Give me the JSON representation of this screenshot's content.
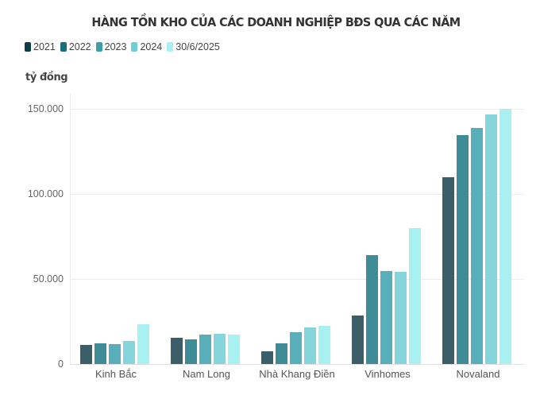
{
  "chart_data": {
    "type": "bar",
    "title": "HÀNG TỒN KHO CỦA CÁC DOANH NGHIỆP BĐS QUA CÁC NĂM",
    "ylabel": "tỷ đồng",
    "xlabel": "",
    "ylim": [
      0,
      150000
    ],
    "yticks": [
      "0",
      "50.000",
      "100.000",
      "150.000"
    ],
    "grid": true,
    "legend_position": "top-left",
    "categories": [
      "Kinh Bắc",
      "Nam Long",
      "Nhà Khang Điền",
      "Vinhomes",
      "Novaland"
    ],
    "series": [
      {
        "name": "2021",
        "color": "#3b5e69",
        "values": [
          11200,
          15400,
          7500,
          28300,
          109600
        ]
      },
      {
        "name": "2022",
        "color": "#3f8b96",
        "values": [
          12100,
          14700,
          12100,
          64000,
          134600
        ]
      },
      {
        "name": "2023",
        "color": "#58aeb9",
        "values": [
          11700,
          17100,
          18500,
          54900,
          138800
        ]
      },
      {
        "name": "2024",
        "color": "#86d5da",
        "values": [
          13500,
          17800,
          21700,
          54200,
          146500
        ]
      },
      {
        "name": "30/6/2025",
        "color": "#a9f0f0",
        "values": [
          23400,
          17500,
          22400,
          79700,
          149800
        ]
      }
    ]
  },
  "legend": {
    "items": [
      {
        "label": "2021",
        "color": "#0f3d47"
      },
      {
        "label": "2022",
        "color": "#1a6f7b"
      },
      {
        "label": "2023",
        "color": "#3e9ea8"
      },
      {
        "label": "2024",
        "color": "#6fcdd3"
      },
      {
        "label": "30/6/2025",
        "color": "#a9f0f0"
      }
    ]
  }
}
